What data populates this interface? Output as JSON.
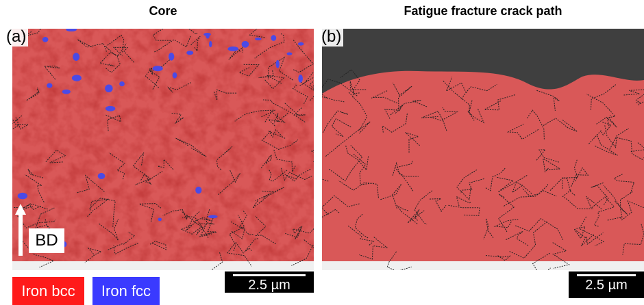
{
  "panels": [
    {
      "title": "Core",
      "label": "(a)",
      "scale_bar": "2.5 µm"
    },
    {
      "title": "Fatigue fracture crack path",
      "label": "(b)",
      "scale_bar": "2.5 µm"
    }
  ],
  "legend": [
    "Iron bcc",
    "Iron fcc"
  ],
  "direction_label": "BD"
}
